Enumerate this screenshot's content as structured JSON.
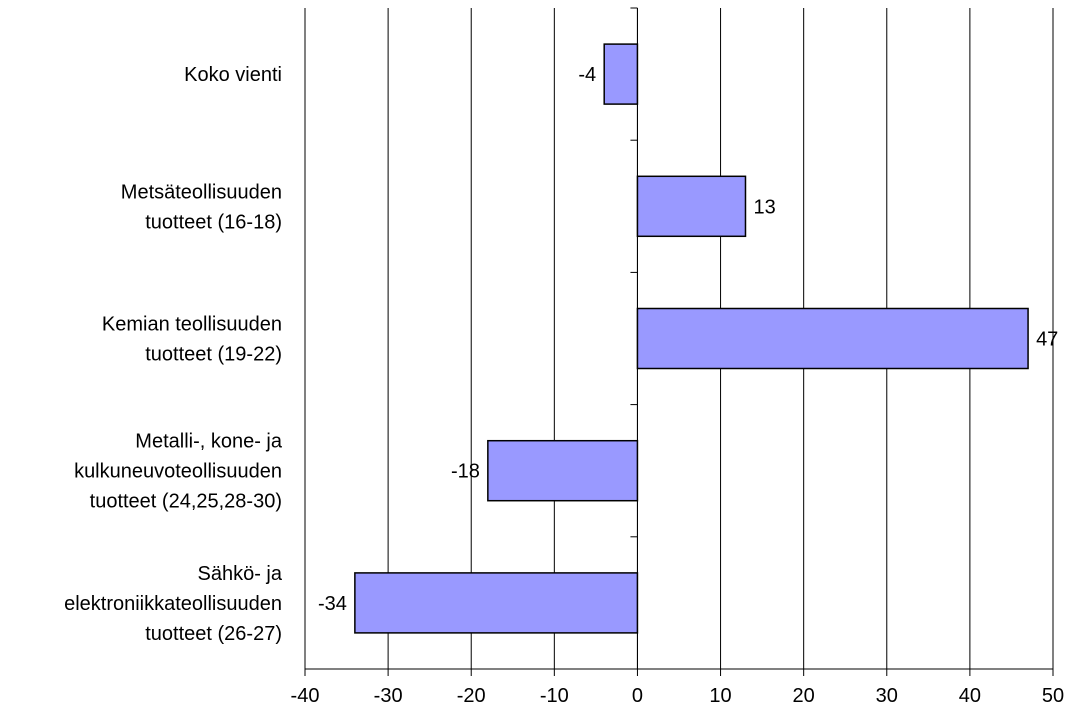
{
  "chart_data": {
    "type": "bar",
    "orientation": "horizontal",
    "title": "",
    "xlabel": "",
    "ylabel": "",
    "categories": [
      [
        "Koko vienti"
      ],
      [
        "Metsäteollisuuden",
        "tuotteet (16-18)"
      ],
      [
        "Kemian teollisuuden",
        "tuotteet (19-22)"
      ],
      [
        "Metalli-, kone- ja",
        "kulkuneuvoteollisuuden",
        "tuotteet (24,25,28-30)"
      ],
      [
        "Sähkö- ja",
        "elektroniikkateollisuuden",
        "tuotteet (26-27)"
      ]
    ],
    "values": [
      -4,
      13,
      47,
      -18,
      -34
    ],
    "data_labels": [
      "-4",
      "13",
      "47",
      "-18",
      "-34"
    ],
    "xlim": [
      -40,
      50
    ],
    "xticks": [
      -40,
      -30,
      -20,
      -10,
      0,
      10,
      20,
      30,
      40,
      50
    ],
    "xtick_labels": [
      "-40",
      "-30",
      "-20",
      "-10",
      "0",
      "10",
      "20",
      "30",
      "40",
      "50"
    ],
    "grid": "vertical",
    "legend": "none",
    "bar_color": "#9999ff",
    "bar_edge_color": "#000000"
  }
}
